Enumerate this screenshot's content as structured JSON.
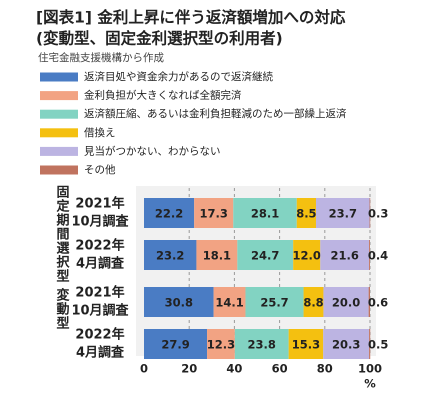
{
  "chart_data": {
    "type": "stacked-barh",
    "title": "[図表1] 金利上昇に伴う返済額増加への対応",
    "subtitle": "(変動型、固定金利選択型の利用者)",
    "source": "住宅金融支援機構から作成",
    "groups": [
      "固定期間選択型",
      "変動型"
    ],
    "categories": [
      [
        "2021年",
        "10月調査"
      ],
      [
        "2022年",
        "4月調査"
      ],
      [
        "2021年",
        "10月調査"
      ],
      [
        "2022年",
        "4月調査"
      ]
    ],
    "series": [
      {
        "name": "返済目処や資金余力があるので返済継続",
        "color": "#4a7cc4",
        "values": [
          22.2,
          23.2,
          30.8,
          27.9
        ],
        "value_labels": [
          "22.2",
          "23.2",
          "30.8",
          "27.9"
        ]
      },
      {
        "name": "金利負担が大きくなれば全額完済",
        "color": "#f2a383",
        "values": [
          17.3,
          18.1,
          14.1,
          12.3
        ],
        "value_labels": [
          "17.3",
          "18.1",
          "14.1",
          "12.3"
        ]
      },
      {
        "name": "返済額圧縮、あるいは金利負担軽減のため一部繰上返済",
        "color": "#82d3c2",
        "values": [
          28.1,
          24.7,
          25.7,
          23.8
        ],
        "value_labels": [
          "28.1",
          "24.7",
          "25.7",
          "23.8"
        ]
      },
      {
        "name": "借換え",
        "color": "#f4c010",
        "values": [
          8.5,
          12.0,
          8.8,
          15.3
        ],
        "value_labels": [
          "8.5",
          "12.0",
          "8.8",
          "15.3"
        ]
      },
      {
        "name": "見当がつかない、わからない",
        "color": "#bcb4e2",
        "values": [
          23.7,
          21.6,
          20.0,
          20.3
        ],
        "value_labels": [
          "23.7",
          "21.6",
          "20.0",
          "20.3"
        ]
      },
      {
        "name": "その他",
        "color": "#c0735f",
        "values": [
          0.3,
          0.4,
          0.6,
          0.5
        ],
        "value_labels": [
          "0.3",
          "0.4",
          "0.6",
          "0.5"
        ]
      }
    ],
    "xlim": [
      0,
      100
    ],
    "xticks": [
      0,
      20,
      40,
      60,
      80,
      100
    ],
    "xlabel": "%",
    "grid": true
  }
}
